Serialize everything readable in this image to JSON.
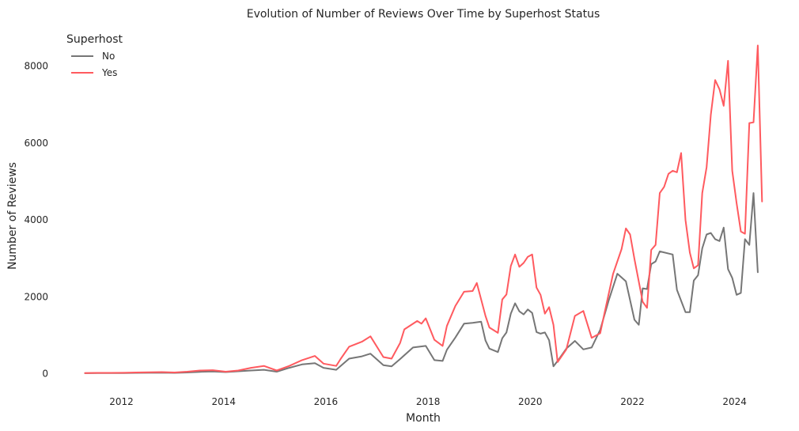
{
  "chart_data": {
    "type": "line",
    "title": "Evolution of Number of Reviews Over Time by Superhost Status",
    "xlabel": "Month",
    "ylabel": "Number of Reviews",
    "xlim": [
      "2010-12-15",
      "2024-11-15"
    ],
    "ylim": [
      -300,
      8900
    ],
    "grid": false,
    "legend": {
      "title": "Superhost",
      "placement": "top-left"
    },
    "x_ticks": [
      "2012",
      "2014",
      "2016",
      "2018",
      "2020",
      "2022",
      "2024"
    ],
    "x_tick_dates": [
      "2012-01-01",
      "2014-01-01",
      "2016-01-01",
      "2018-01-01",
      "2020-01-01",
      "2022-01-01",
      "2024-01-01"
    ],
    "y_ticks": [
      "0",
      "2000",
      "4000",
      "6000",
      "8000"
    ],
    "y_tick_values": [
      0,
      2000,
      4000,
      6000,
      8000
    ],
    "series": [
      {
        "name": "No",
        "color": "#767676",
        "points": [
          [
            "2011-04",
            10
          ],
          [
            "2011-07",
            12
          ],
          [
            "2011-10",
            14
          ],
          [
            "2012-01",
            15
          ],
          [
            "2012-04",
            18
          ],
          [
            "2012-07",
            22
          ],
          [
            "2012-10",
            25
          ],
          [
            "2013-01",
            20
          ],
          [
            "2013-04",
            30
          ],
          [
            "2013-07",
            45
          ],
          [
            "2013-10",
            55
          ],
          [
            "2014-01",
            40
          ],
          [
            "2014-04",
            60
          ],
          [
            "2014-07",
            80
          ],
          [
            "2014-10",
            100
          ],
          [
            "2015-01",
            50
          ],
          [
            "2015-04",
            150
          ],
          [
            "2015-07",
            240
          ],
          [
            "2015-10",
            270
          ],
          [
            "2015-12",
            150
          ],
          [
            "2016-03",
            100
          ],
          [
            "2016-06",
            390
          ],
          [
            "2016-09",
            450
          ],
          [
            "2016-11",
            520
          ],
          [
            "2017-02",
            220
          ],
          [
            "2017-04",
            190
          ],
          [
            "2017-06",
            380
          ],
          [
            "2017-09",
            680
          ],
          [
            "2017-12",
            720
          ],
          [
            "2018-02",
            350
          ],
          [
            "2018-04",
            330
          ],
          [
            "2018-05",
            620
          ],
          [
            "2018-07",
            940
          ],
          [
            "2018-09",
            1300
          ],
          [
            "2018-11",
            1320
          ],
          [
            "2019-01",
            1350
          ],
          [
            "2019-02",
            860
          ],
          [
            "2019-03",
            650
          ],
          [
            "2019-05",
            560
          ],
          [
            "2019-06",
            920
          ],
          [
            "2019-07",
            1070
          ],
          [
            "2019-08",
            1560
          ],
          [
            "2019-09",
            1830
          ],
          [
            "2019-10",
            1620
          ],
          [
            "2019-11",
            1540
          ],
          [
            "2019-12",
            1670
          ],
          [
            "2020-01",
            1580
          ],
          [
            "2020-02",
            1080
          ],
          [
            "2020-03",
            1040
          ],
          [
            "2020-04",
            1070
          ],
          [
            "2020-05",
            870
          ],
          [
            "2020-06",
            190
          ],
          [
            "2020-07",
            330
          ],
          [
            "2020-09",
            650
          ],
          [
            "2020-11",
            850
          ],
          [
            "2021-01",
            630
          ],
          [
            "2021-03",
            680
          ],
          [
            "2021-05",
            1140
          ],
          [
            "2021-07",
            1900
          ],
          [
            "2021-09",
            2600
          ],
          [
            "2021-11",
            2400
          ],
          [
            "2022-01",
            1400
          ],
          [
            "2022-02",
            1270
          ],
          [
            "2022-03",
            2220
          ],
          [
            "2022-04",
            2200
          ],
          [
            "2022-05",
            2850
          ],
          [
            "2022-06",
            2920
          ],
          [
            "2022-07",
            3180
          ],
          [
            "2022-10",
            3100
          ],
          [
            "2022-11",
            2180
          ],
          [
            "2023-01",
            1600
          ],
          [
            "2023-02",
            1600
          ],
          [
            "2023-03",
            2420
          ],
          [
            "2023-04",
            2560
          ],
          [
            "2023-05",
            3260
          ],
          [
            "2023-06",
            3620
          ],
          [
            "2023-07",
            3660
          ],
          [
            "2023-08",
            3500
          ],
          [
            "2023-09",
            3450
          ],
          [
            "2023-10",
            3800
          ],
          [
            "2023-11",
            2720
          ],
          [
            "2023-12",
            2490
          ],
          [
            "2024-01",
            2050
          ],
          [
            "2024-02",
            2100
          ],
          [
            "2024-03",
            3500
          ],
          [
            "2024-04",
            3350
          ],
          [
            "2024-05",
            4700
          ],
          [
            "2024-06",
            2640
          ]
        ]
      },
      {
        "name": "Yes",
        "color": "#FF5A5F",
        "points": [
          [
            "2011-04",
            15
          ],
          [
            "2011-07",
            18
          ],
          [
            "2011-10",
            20
          ],
          [
            "2012-01",
            22
          ],
          [
            "2012-04",
            30
          ],
          [
            "2012-07",
            35
          ],
          [
            "2012-10",
            40
          ],
          [
            "2013-01",
            30
          ],
          [
            "2013-04",
            50
          ],
          [
            "2013-07",
            80
          ],
          [
            "2013-10",
            90
          ],
          [
            "2014-01",
            50
          ],
          [
            "2014-04",
            80
          ],
          [
            "2014-07",
            150
          ],
          [
            "2014-10",
            200
          ],
          [
            "2015-01",
            80
          ],
          [
            "2015-04",
            200
          ],
          [
            "2015-07",
            350
          ],
          [
            "2015-10",
            460
          ],
          [
            "2015-12",
            260
          ],
          [
            "2016-03",
            200
          ],
          [
            "2016-04",
            380
          ],
          [
            "2016-06",
            700
          ],
          [
            "2016-09",
            830
          ],
          [
            "2016-11",
            970
          ],
          [
            "2017-02",
            430
          ],
          [
            "2017-04",
            390
          ],
          [
            "2017-06",
            800
          ],
          [
            "2017-07",
            1150
          ],
          [
            "2017-10",
            1370
          ],
          [
            "2017-11",
            1300
          ],
          [
            "2017-12",
            1440
          ],
          [
            "2018-02",
            880
          ],
          [
            "2018-04",
            720
          ],
          [
            "2018-05",
            1240
          ],
          [
            "2018-07",
            1760
          ],
          [
            "2018-09",
            2130
          ],
          [
            "2018-11",
            2150
          ],
          [
            "2018-12",
            2360
          ],
          [
            "2019-02",
            1500
          ],
          [
            "2019-03",
            1200
          ],
          [
            "2019-05",
            1060
          ],
          [
            "2019-06",
            1930
          ],
          [
            "2019-07",
            2060
          ],
          [
            "2019-08",
            2800
          ],
          [
            "2019-09",
            3100
          ],
          [
            "2019-10",
            2780
          ],
          [
            "2019-11",
            2880
          ],
          [
            "2019-12",
            3040
          ],
          [
            "2020-01",
            3100
          ],
          [
            "2020-02",
            2240
          ],
          [
            "2020-03",
            2050
          ],
          [
            "2020-04",
            1560
          ],
          [
            "2020-05",
            1730
          ],
          [
            "2020-06",
            1270
          ],
          [
            "2020-07",
            300
          ],
          [
            "2020-09",
            630
          ],
          [
            "2020-11",
            1500
          ],
          [
            "2021-01",
            1630
          ],
          [
            "2021-03",
            930
          ],
          [
            "2021-05",
            1050
          ],
          [
            "2021-06",
            1570
          ],
          [
            "2021-08",
            2590
          ],
          [
            "2021-10",
            3240
          ],
          [
            "2021-11",
            3780
          ],
          [
            "2021-12",
            3620
          ],
          [
            "2022-01",
            2980
          ],
          [
            "2022-03",
            1870
          ],
          [
            "2022-04",
            1710
          ],
          [
            "2022-05",
            3220
          ],
          [
            "2022-06",
            3350
          ],
          [
            "2022-07",
            4700
          ],
          [
            "2022-08",
            4860
          ],
          [
            "2022-09",
            5200
          ],
          [
            "2022-10",
            5280
          ],
          [
            "2022-11",
            5240
          ],
          [
            "2022-12",
            5740
          ],
          [
            "2023-01",
            4000
          ],
          [
            "2023-02",
            3150
          ],
          [
            "2023-03",
            2740
          ],
          [
            "2023-04",
            2820
          ],
          [
            "2023-05",
            4700
          ],
          [
            "2023-06",
            5370
          ],
          [
            "2023-07",
            6730
          ],
          [
            "2023-08",
            7640
          ],
          [
            "2023-09",
            7400
          ],
          [
            "2023-10",
            6970
          ],
          [
            "2023-11",
            8140
          ],
          [
            "2023-12",
            5280
          ],
          [
            "2024-01",
            4440
          ],
          [
            "2024-02",
            3700
          ],
          [
            "2024-03",
            3640
          ],
          [
            "2024-04",
            6520
          ],
          [
            "2024-05",
            6540
          ],
          [
            "2024-06",
            8540
          ],
          [
            "2024-07",
            4480
          ]
        ]
      }
    ]
  }
}
